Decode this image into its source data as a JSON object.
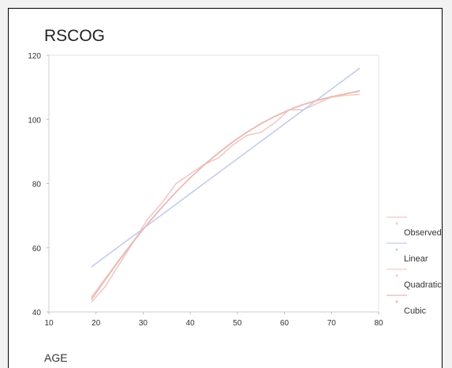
{
  "chart_data": {
    "type": "line",
    "title": "RSCOG",
    "xlabel": "AGE",
    "ylabel": "",
    "xlim": [
      10,
      80
    ],
    "ylim": [
      40,
      120
    ],
    "x_ticks": [
      10,
      20,
      30,
      40,
      50,
      60,
      70,
      80
    ],
    "y_ticks": [
      40,
      60,
      80,
      100,
      120
    ],
    "legend_position": "right",
    "series": [
      {
        "name": "Observed",
        "color": "#f2c8c8",
        "x": [
          19,
          22,
          25,
          28,
          31,
          34,
          37,
          40,
          43,
          46,
          49,
          52,
          55,
          58,
          61,
          64,
          67,
          70,
          73,
          76
        ],
        "y": [
          43,
          48,
          55,
          62,
          69,
          74,
          80,
          83,
          86,
          88,
          92,
          95,
          96,
          99,
          103,
          103,
          105,
          107,
          108,
          109
        ]
      },
      {
        "name": "Linear",
        "color": "#c4ccee",
        "x": [
          19,
          76
        ],
        "y": [
          54,
          116
        ]
      },
      {
        "name": "Quadratic",
        "color": "#f0cfc0",
        "x": [
          19,
          22,
          25,
          28,
          31,
          34,
          37,
          40,
          43,
          46,
          49,
          52,
          55,
          58,
          61,
          64,
          67,
          70,
          73,
          76
        ],
        "y": [
          44.5,
          50.5,
          56.5,
          62.2,
          67.6,
          72.7,
          77.4,
          81.8,
          85.8,
          89.5,
          92.9,
          95.9,
          98.6,
          100.9,
          102.9,
          104.6,
          105.9,
          106.9,
          107.5,
          107.8
        ]
      },
      {
        "name": "Cubic",
        "color": "#e9b8b8",
        "x": [
          19,
          22,
          25,
          28,
          31,
          34,
          37,
          40,
          43,
          46,
          49,
          52,
          55,
          58,
          61,
          64,
          67,
          70,
          73,
          76
        ],
        "y": [
          43.8,
          50.1,
          56.2,
          62.0,
          67.5,
          72.6,
          77.4,
          81.8,
          85.9,
          89.6,
          93.0,
          96.0,
          98.7,
          101.0,
          103.0,
          104.7,
          106.0,
          107.1,
          108.0,
          108.8
        ]
      }
    ]
  }
}
